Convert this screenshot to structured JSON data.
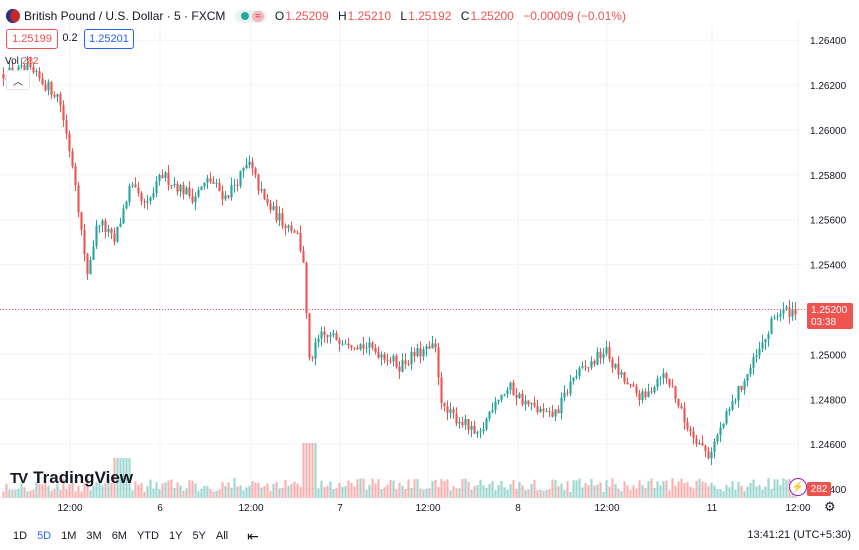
{
  "header": {
    "symbol": "British Pound / U.S. Dollar · 5 · FXCM",
    "open": "1.25209",
    "high": "1.25210",
    "low": "1.25192",
    "close": "1.25200",
    "change": "−0.00009 (−0.01%)",
    "open_key": "O",
    "high_key": "H",
    "low_key": "L",
    "close_key": "C"
  },
  "trade": {
    "sell": "1.25199",
    "spread": "0.2",
    "buy": "1.25201"
  },
  "volume": {
    "label": "Vol",
    "value": "282"
  },
  "branding": {
    "logo_text": "TradingView"
  },
  "last_price": {
    "price": "1.25200",
    "countdown": "03:38"
  },
  "volume_tag": "282",
  "bottom": {
    "timeframes": [
      "1D",
      "5D",
      "1M",
      "3M",
      "6M",
      "YTD",
      "1Y",
      "5Y",
      "All"
    ],
    "active": "5D",
    "clock": "13:41:21 (UTC+5:30)"
  },
  "colors": {
    "up": "#26a69a",
    "down": "#ef5350",
    "accent": "#2962ff"
  },
  "chart_data": {
    "type": "candlestick",
    "title": "British Pound / U.S. Dollar · 5 · FXCM",
    "y_ticks": [
      "1.26400",
      "1.26200",
      "1.26000",
      "1.25800",
      "1.25600",
      "1.25400",
      "1.25200",
      "1.25000",
      "1.24800",
      "1.24600",
      "1.24400"
    ],
    "ylim": [
      1.2436,
      1.2649
    ],
    "x_ticks": [
      "12:00",
      "6",
      "12:00",
      "7",
      "12:00",
      "8",
      "12:00",
      "11",
      "12:00"
    ],
    "last_price": 1.252,
    "grid": true,
    "path": [
      [
        0,
        1.2625
      ],
      [
        0.03,
        1.2627
      ],
      [
        0.07,
        1.2615
      ],
      [
        0.09,
        1.258
      ],
      [
        0.105,
        1.2535
      ],
      [
        0.12,
        1.256
      ],
      [
        0.14,
        1.255
      ],
      [
        0.16,
        1.2575
      ],
      [
        0.18,
        1.2565
      ],
      [
        0.2,
        1.258
      ],
      [
        0.22,
        1.2575
      ],
      [
        0.24,
        1.257
      ],
      [
        0.26,
        1.2578
      ],
      [
        0.28,
        1.257
      ],
      [
        0.3,
        1.258
      ],
      [
        0.31,
        1.2585
      ],
      [
        0.33,
        1.2568
      ],
      [
        0.35,
        1.256
      ],
      [
        0.37,
        1.2555
      ],
      [
        0.38,
        1.254
      ],
      [
        0.385,
        1.2495
      ],
      [
        0.4,
        1.2508
      ],
      [
        0.43,
        1.2507
      ],
      [
        0.46,
        1.2503
      ],
      [
        0.48,
        1.25
      ],
      [
        0.5,
        1.2495
      ],
      [
        0.52,
        1.25
      ],
      [
        0.545,
        1.2503
      ],
      [
        0.555,
        1.2475
      ],
      [
        0.58,
        1.247
      ],
      [
        0.6,
        1.2462
      ],
      [
        0.62,
        1.248
      ],
      [
        0.64,
        1.2485
      ],
      [
        0.66,
        1.2478
      ],
      [
        0.69,
        1.2472
      ],
      [
        0.7,
        1.2475
      ],
      [
        0.72,
        1.249
      ],
      [
        0.74,
        1.2495
      ],
      [
        0.76,
        1.2502
      ],
      [
        0.77,
        1.2495
      ],
      [
        0.79,
        1.2485
      ],
      [
        0.81,
        1.248
      ],
      [
        0.83,
        1.2492
      ],
      [
        0.845,
        1.2485
      ],
      [
        0.86,
        1.247
      ],
      [
        0.88,
        1.246
      ],
      [
        0.89,
        1.2455
      ],
      [
        0.91,
        1.247
      ],
      [
        0.93,
        1.2485
      ],
      [
        0.96,
        1.2505
      ],
      [
        0.975,
        1.2518
      ],
      [
        1.0,
        1.252
      ]
    ]
  }
}
